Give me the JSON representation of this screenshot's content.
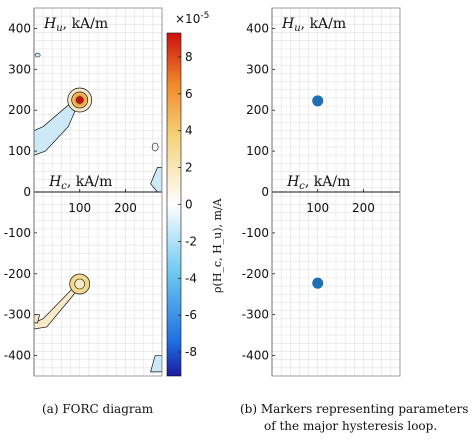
{
  "chart_data": [
    {
      "type": "heatmap",
      "panel": "a",
      "caption": "(a) FORC diagram",
      "xlabel": "H_c, kA/m",
      "ylabel": "H_u, kA/m",
      "xlim": [
        0,
        280
      ],
      "ylim": [
        -450,
        450
      ],
      "xticks": [
        "100",
        "200"
      ],
      "yticks": [
        "400",
        "300",
        "200",
        "100",
        "0",
        "-100",
        "-200",
        "-300",
        "-400"
      ],
      "grid": true,
      "colorbar": {
        "label": "ρ(H_c, H_u), m/A",
        "exponent": "×10^-5",
        "ticks": [
          "8",
          "6",
          "4",
          "2",
          "0",
          "-2",
          "-4",
          "-6",
          "-8"
        ],
        "range": [
          -9.3,
          9.3
        ]
      },
      "features": [
        {
          "name": "positive peak",
          "x": 100,
          "y": 225,
          "value": 9
        },
        {
          "name": "negative peak",
          "x": 100,
          "y": -225,
          "value": 2.5
        },
        {
          "name": "upper ridge",
          "x_range": [
            0,
            95
          ],
          "y_range": [
            90,
            225
          ],
          "value": -1.5
        },
        {
          "name": "lower ridge",
          "x_range": [
            0,
            95
          ],
          "y_range": [
            -320,
            -225
          ],
          "value": 1.5
        }
      ]
    },
    {
      "type": "scatter",
      "panel": "b",
      "caption_line1": "(b) Markers representing parameters",
      "caption_line2": "of the major hysteresis loop.",
      "xlabel": "H_c, kA/m",
      "ylabel": "H_u, kA/m",
      "xlim": [
        0,
        280
      ],
      "ylim": [
        -450,
        450
      ],
      "xticks": [
        "100",
        "200"
      ],
      "yticks": [
        "400",
        "300",
        "200",
        "100",
        "0",
        "-100",
        "-200",
        "-300",
        "-400"
      ],
      "grid": true,
      "marker_color": "#1f6fb5",
      "points": [
        {
          "x": 100,
          "y": 223
        },
        {
          "x": 100,
          "y": -223
        }
      ]
    }
  ]
}
